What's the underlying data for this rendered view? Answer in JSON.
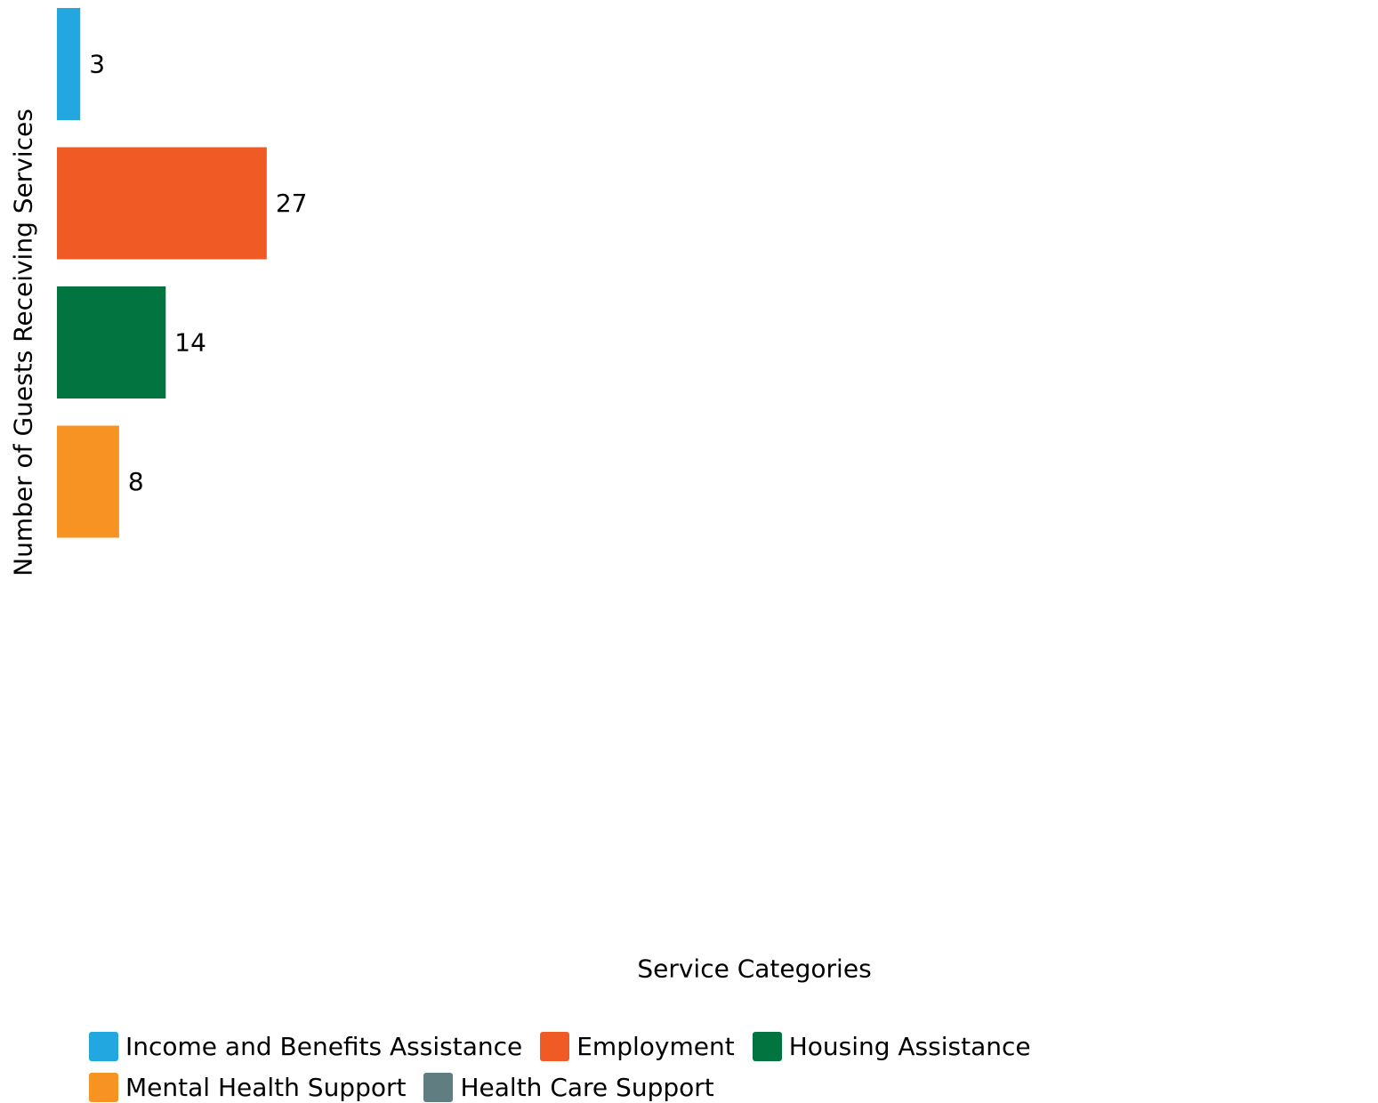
{
  "chart_data": {
    "type": "bar",
    "orientation": "horizontal",
    "xlabel": "Service Categories",
    "ylabel": "Number of Guests Receiving Services",
    "grid": false,
    "legend_position": "bottom",
    "xlim": [
      0,
      170
    ],
    "series": [
      {
        "name": "Income and Benefits Assistance",
        "value": 3,
        "label": "3",
        "color": "#23A7E1"
      },
      {
        "name": "Employment",
        "value": 27,
        "label": "27",
        "color": "#F05A24"
      },
      {
        "name": "Housing Assistance",
        "value": 14,
        "label": "14",
        "color": "#017440"
      },
      {
        "name": "Mental Health Support",
        "value": 8,
        "label": "8",
        "color": "#F69322"
      },
      {
        "name": "Health Care Support",
        "value": 0,
        "label": "",
        "color": "#607D82"
      }
    ]
  }
}
